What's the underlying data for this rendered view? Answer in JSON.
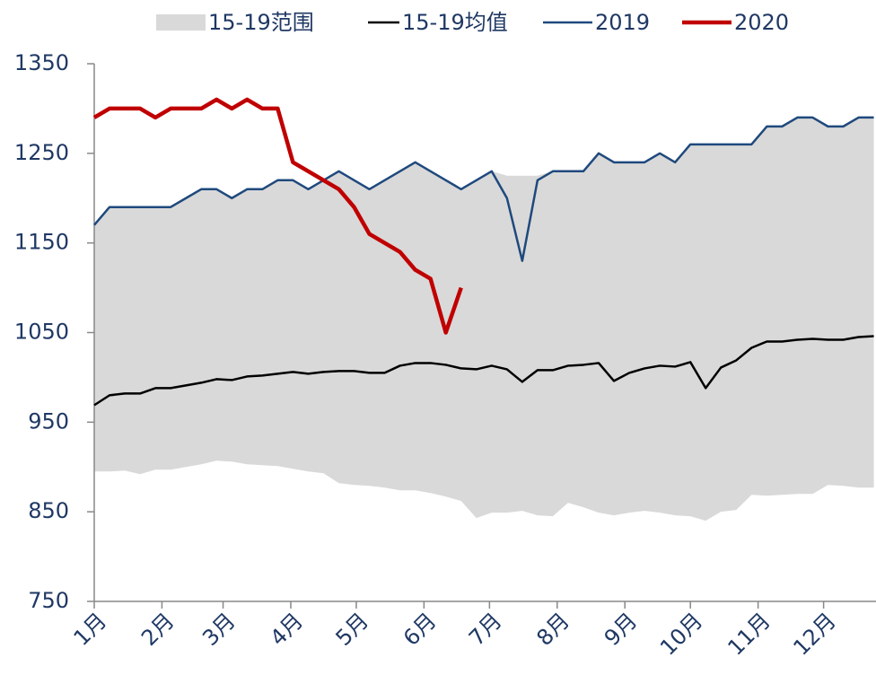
{
  "chart_data": {
    "type": "line",
    "x": [
      0,
      7,
      14,
      21,
      28,
      35,
      42,
      49,
      56,
      63,
      70,
      77,
      84,
      91,
      98,
      105,
      112,
      119,
      126,
      133,
      140,
      147,
      154,
      161,
      168,
      175,
      182,
      189,
      196,
      203,
      210,
      217,
      224,
      231,
      238,
      245,
      252,
      259,
      266,
      273,
      280,
      287,
      294,
      301,
      308,
      315,
      322,
      329,
      336,
      343,
      350,
      357
    ],
    "xlim": [
      0,
      358
    ],
    "xticks": [
      {
        "value": 0,
        "label": "1月"
      },
      {
        "value": 31,
        "label": "2月"
      },
      {
        "value": 59,
        "label": "3月"
      },
      {
        "value": 90,
        "label": "4月"
      },
      {
        "value": 120,
        "label": "5月"
      },
      {
        "value": 151,
        "label": "6月"
      },
      {
        "value": 181,
        "label": "7月"
      },
      {
        "value": 212,
        "label": "8月"
      },
      {
        "value": 243,
        "label": "9月"
      },
      {
        "value": 273,
        "label": "10月"
      },
      {
        "value": 304,
        "label": "11月"
      },
      {
        "value": 334,
        "label": "12月"
      }
    ],
    "ylim": [
      750,
      1350
    ],
    "yticks": [
      750,
      850,
      950,
      1050,
      1150,
      1250,
      1350
    ],
    "series": [
      {
        "name": "15-19范围",
        "color": "#d9d9d9",
        "kind": "range",
        "high": [
          1170,
          1190,
          1190,
          1190,
          1190,
          1190,
          1200,
          1210,
          1210,
          1200,
          1210,
          1210,
          1220,
          1220,
          1210,
          1220,
          1230,
          1220,
          1210,
          1220,
          1230,
          1240,
          1230,
          1220,
          1210,
          1220,
          1230,
          1225,
          1225,
          1225,
          1230,
          1230,
          1230,
          1250,
          1240,
          1240,
          1240,
          1250,
          1240,
          1260,
          1260,
          1260,
          1260,
          1260,
          1280,
          1280,
          1290,
          1290,
          1280,
          1280,
          1290,
          1290
        ],
        "low": [
          895,
          895,
          896,
          892,
          897,
          897,
          900,
          903,
          907,
          906,
          903,
          902,
          901,
          898,
          895,
          893,
          882,
          880,
          879,
          877,
          874,
          874,
          871,
          867,
          862,
          843,
          849,
          849,
          851,
          846,
          845,
          860,
          855,
          849,
          846,
          849,
          851,
          849,
          846,
          845,
          840,
          850,
          852,
          869,
          868,
          869,
          870,
          870,
          880,
          879,
          877,
          877
        ]
      },
      {
        "name": "15-19均值",
        "color": "#000000",
        "width": 2.5,
        "values": [
          969,
          980,
          982,
          982,
          988,
          988,
          991,
          994,
          998,
          997,
          1001,
          1002,
          1004,
          1006,
          1004,
          1006,
          1007,
          1007,
          1005,
          1005,
          1013,
          1016,
          1016,
          1014,
          1010,
          1009,
          1013,
          1009,
          995,
          1008,
          1008,
          1013,
          1014,
          1016,
          996,
          1005,
          1010,
          1013,
          1012,
          1017,
          988,
          1011,
          1019,
          1033,
          1040,
          1040,
          1042,
          1043,
          1042,
          1042,
          1045,
          1046
        ]
      },
      {
        "name": "2019",
        "color": "#1f497d",
        "width": 2.5,
        "values": [
          1170,
          1190,
          1190,
          1190,
          1190,
          1190,
          1200,
          1210,
          1210,
          1200,
          1210,
          1210,
          1220,
          1220,
          1210,
          1220,
          1230,
          1220,
          1210,
          1220,
          1230,
          1240,
          1230,
          1220,
          1210,
          1220,
          1230,
          1200,
          1130,
          1220,
          1230,
          1230,
          1230,
          1250,
          1240,
          1240,
          1240,
          1250,
          1240,
          1260,
          1260,
          1260,
          1260,
          1260,
          1280,
          1280,
          1290,
          1290,
          1280,
          1280,
          1290,
          1290
        ]
      },
      {
        "name": "2020",
        "color": "#c00000",
        "width": 4.5,
        "values": [
          1290,
          1300,
          1300,
          1300,
          1290,
          1300,
          1300,
          1300,
          1310,
          1300,
          1310,
          1300,
          1300,
          1240,
          1230,
          1220,
          1210,
          1190,
          1160,
          1150,
          1140,
          1120,
          1110,
          1050,
          1100,
          null,
          null,
          null,
          null,
          null,
          null,
          null,
          null,
          null,
          null,
          null,
          null,
          null,
          null,
          null,
          null,
          null,
          null,
          null,
          null,
          null,
          null,
          null,
          null,
          null,
          null,
          null
        ]
      }
    ]
  }
}
